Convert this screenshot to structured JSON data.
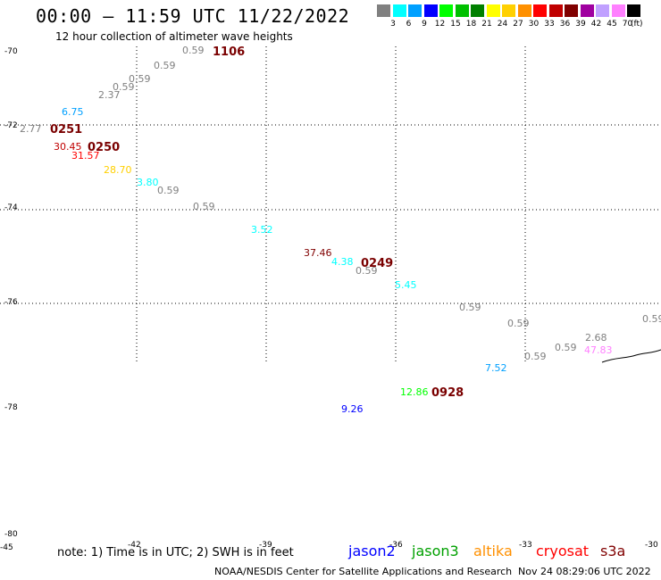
{
  "header": {
    "title": "00:00 – 11:59 UTC 11/22/2022",
    "subtitle": "12 hour collection of altimeter wave heights"
  },
  "legend": {
    "unit": "(ft)",
    "items": [
      {
        "label": "3",
        "color": "#808080"
      },
      {
        "label": "6",
        "color": "#00ffff"
      },
      {
        "label": "9",
        "color": "#00a0ff"
      },
      {
        "label": "12",
        "color": "#0000ff"
      },
      {
        "label": "15",
        "color": "#00ff00"
      },
      {
        "label": "18",
        "color": "#00c000"
      },
      {
        "label": "21",
        "color": "#008000"
      },
      {
        "label": "24",
        "color": "#ffff00"
      },
      {
        "label": "27",
        "color": "#ffd000"
      },
      {
        "label": "30",
        "color": "#ff9000"
      },
      {
        "label": "33",
        "color": "#ff0000"
      },
      {
        "label": "36",
        "color": "#c00000"
      },
      {
        "label": "39",
        "color": "#800000"
      },
      {
        "label": "42",
        "color": "#a000a0"
      },
      {
        "label": "45",
        "color": "#c0a0ff"
      },
      {
        "label": "70",
        "color": "#ff80ff"
      },
      {
        "label": "",
        "color": "#000000"
      }
    ]
  },
  "axes": {
    "lat_labels": [
      {
        "label": "-70",
        "lat": -70
      },
      {
        "label": "-72",
        "lat": -72
      },
      {
        "label": "-74",
        "lat": -74
      },
      {
        "label": "-76",
        "lat": -76
      },
      {
        "label": "-78",
        "lat": -78
      },
      {
        "label": "-80",
        "lat": -80
      }
    ],
    "lon_labels": [
      "-45",
      "-42",
      "-39",
      "-36",
      "-33",
      "-30"
    ]
  },
  "observations": [
    {
      "v": "0.59",
      "c": "#808080"
    },
    {
      "v": "0.59",
      "c": "#808080"
    },
    {
      "v": "0.59",
      "c": "#808080"
    },
    {
      "v": "0.59",
      "c": "#808080"
    },
    {
      "v": "2.37",
      "c": "#808080"
    },
    {
      "v": "6.75",
      "c": "#00a0ff"
    },
    {
      "v": "2.77",
      "c": "#808080"
    },
    {
      "v": "30.45",
      "c": "#c00000"
    },
    {
      "v": "31.57",
      "c": "#ff0000"
    },
    {
      "v": "28.70",
      "c": "#ffd000"
    },
    {
      "v": "3.80",
      "c": "#00ffff"
    },
    {
      "v": "0.59",
      "c": "#808080"
    },
    {
      "v": "0.59",
      "c": "#808080"
    },
    {
      "v": "3.52",
      "c": "#00ffff"
    },
    {
      "v": "37.46",
      "c": "#800000"
    },
    {
      "v": "4.38",
      "c": "#00ffff"
    },
    {
      "v": "0.59",
      "c": "#808080"
    },
    {
      "v": "5.45",
      "c": "#00ffff"
    },
    {
      "v": "0.59",
      "c": "#808080"
    },
    {
      "v": "0.59",
      "c": "#808080"
    },
    {
      "v": "0.59",
      "c": "#808080"
    },
    {
      "v": "0.59",
      "c": "#808080"
    },
    {
      "v": "0.59",
      "c": "#808080"
    },
    {
      "v": "2.68",
      "c": "#808080"
    },
    {
      "v": "47.83",
      "c": "#ff80ff"
    },
    {
      "v": "7.52",
      "c": "#00a0ff"
    },
    {
      "v": "12.86",
      "c": "#00ff00"
    },
    {
      "v": "9.26",
      "c": "#0000ff"
    }
  ],
  "time_marks": [
    "1106",
    "0251",
    "0250",
    "0249",
    "0928"
  ],
  "footer": {
    "note": "note: 1) Time is in UTC; 2) SWH is in feet",
    "satellites": [
      {
        "name": "jason2",
        "color": "#0000ff"
      },
      {
        "name": "jason3",
        "color": "#00a000"
      },
      {
        "name": "altika",
        "color": "#ff9000"
      },
      {
        "name": "cryosat",
        "color": "#ff0000"
      },
      {
        "name": "s3a",
        "color": "#800000"
      }
    ],
    "credit": "NOAA/NESDIS Center for Satellite Applications and Research",
    "timestamp": "Nov 24 08:29:06 UTC 2022"
  }
}
